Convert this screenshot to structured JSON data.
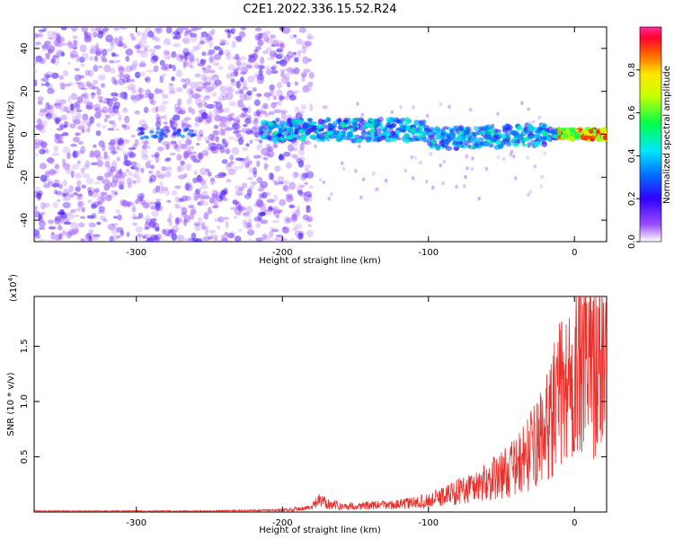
{
  "title": "C2E1.2022.336.15.52.R24",
  "chart_data": [
    {
      "type": "heatmap",
      "xlabel": "Height of straight line (km)",
      "ylabel": "Frequency (Hz)",
      "xlim": [
        -370,
        22
      ],
      "ylim": [
        -50,
        50
      ],
      "xticks": [
        -300,
        -200,
        -100,
        0
      ],
      "yticks": [
        -40,
        -20,
        0,
        20,
        40
      ],
      "colorbar": {
        "label": "Normalized spectral amplitude",
        "range": [
          0,
          1
        ],
        "ticks": [
          0.0,
          0.2,
          0.4,
          0.6,
          0.8
        ]
      },
      "features": {
        "noise_region_x": [
          -370,
          -180
        ],
        "sparse_noise_x": [
          -180,
          -20
        ],
        "band_x": [
          -215,
          22
        ],
        "band_center_frequency": 0,
        "band_halfwidth_hz": 5,
        "peak_region_x": [
          -12,
          22
        ],
        "peak_amplitude": 0.9
      }
    },
    {
      "type": "line",
      "xlabel": "Height of straight line (km)",
      "ylabel": "SNR (10 * v/v)",
      "y_scale_note": "(x10",
      "y_scale_exponent": "4",
      "xlim": [
        -370,
        22
      ],
      "ylim": [
        0,
        1.95
      ],
      "xticks": [
        -300,
        -200,
        -100,
        0
      ],
      "yticks": [
        0.5,
        1.0,
        1.5
      ],
      "series": [
        {
          "color": "#e8302c",
          "x": [
            -370,
            -300,
            -250,
            -200,
            -180,
            -175,
            -160,
            -140,
            -120,
            -100,
            -80,
            -60,
            -50,
            -40,
            -30,
            -20,
            -10,
            0,
            10,
            22
          ],
          "y": [
            0.01,
            0.01,
            0.01,
            0.02,
            0.05,
            0.12,
            0.06,
            0.07,
            0.08,
            0.12,
            0.22,
            0.32,
            0.4,
            0.48,
            0.65,
            0.85,
            1.25,
            1.45,
            1.55,
            1.65
          ]
        }
      ]
    }
  ]
}
